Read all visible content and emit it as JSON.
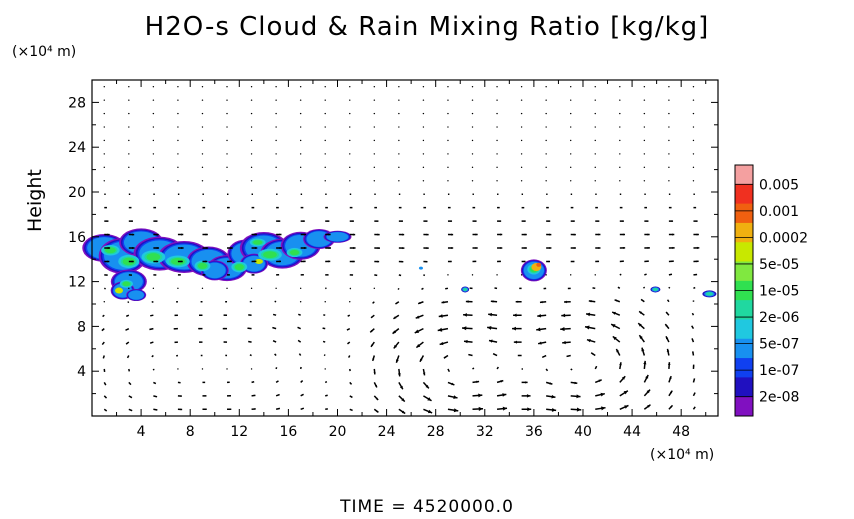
{
  "chart_data": {
    "type": "heatmap",
    "title": "H2O-s Cloud & Rain Mixing Ratio [kg/kg]",
    "ylabel": "Height",
    "y_unit": "(×10⁴ m)",
    "x_unit": "(×10⁴ m)",
    "xlim": [
      0,
      51
    ],
    "ylim": [
      0,
      30
    ],
    "x_ticks": [
      "4",
      "8",
      "12",
      "16",
      "20",
      "24",
      "28",
      "32",
      "36",
      "40",
      "44",
      "48"
    ],
    "y_ticks": [
      "4",
      "8",
      "12",
      "16",
      "20",
      "24",
      "28"
    ],
    "colorbar": {
      "labels": [
        "0.005",
        "0.001",
        "0.0002",
        "5e-05",
        "1e-05",
        "2e-06",
        "5e-07",
        "1e-07",
        "2e-08"
      ],
      "colors": [
        "#f4a0a0",
        "#f03020",
        "#f06010",
        "#f0b010",
        "#c8e800",
        "#80e840",
        "#30e050",
        "#20d8a0",
        "#20c8e0",
        "#1890f0",
        "#1040f0",
        "#2010c0",
        "#8010c0"
      ]
    },
    "regions": [
      {
        "x": [
          0,
          21
        ],
        "y": [
          11,
          17
        ],
        "level": "1e-05",
        "note": "cloud band upper-left"
      },
      {
        "x": [
          35,
          37.5
        ],
        "y": [
          12,
          14
        ],
        "level": "0.0002"
      },
      {
        "x": [
          30,
          31
        ],
        "y": [
          11,
          11.5
        ],
        "level": "5e-07"
      },
      {
        "x": [
          45.5,
          46.5
        ],
        "y": [
          11,
          11.6
        ],
        "level": "5e-07"
      },
      {
        "x": [
          49.5,
          51
        ],
        "y": [
          10.6,
          11.4
        ],
        "level": "5e-07"
      }
    ],
    "vector_field": {
      "description": "wind vectors",
      "grid_dx": 2,
      "grid_dy": 1.2
    },
    "time_label": "TIME",
    "time_value": "4520000.0"
  }
}
